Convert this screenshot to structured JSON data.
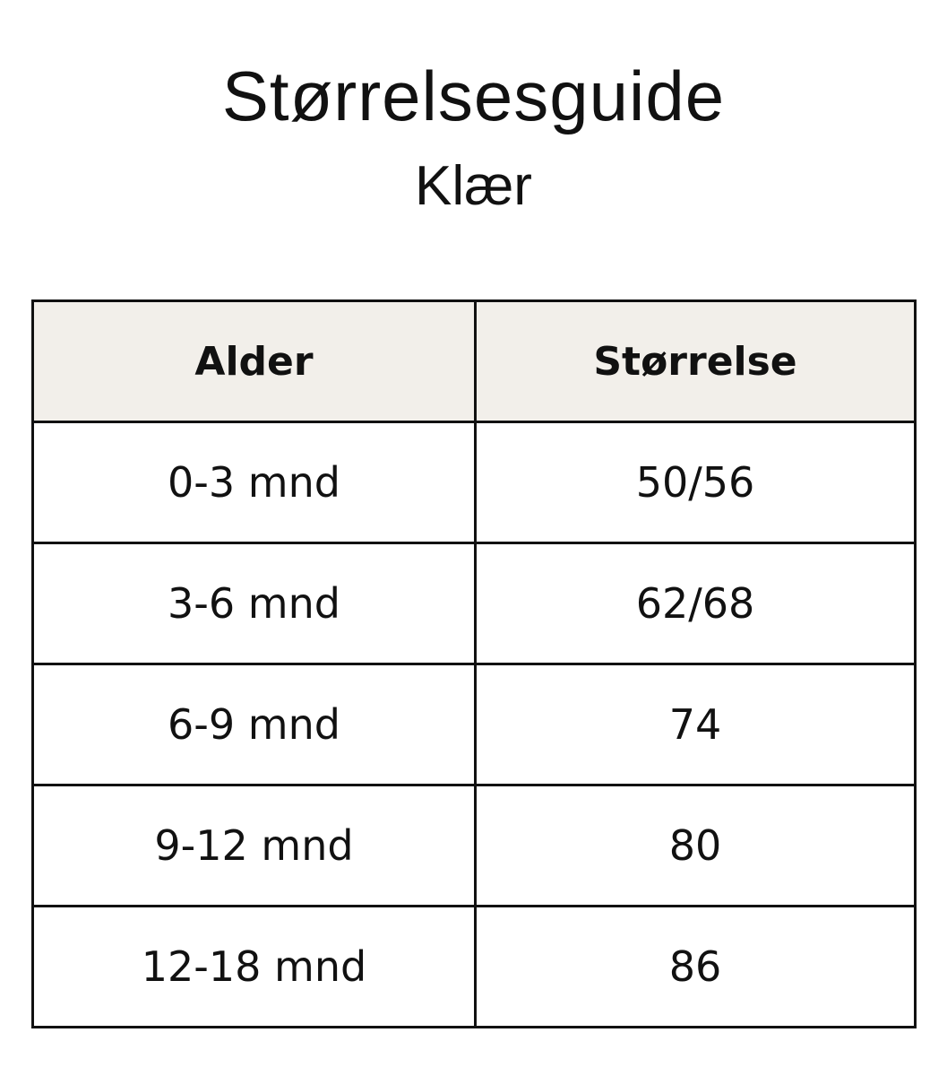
{
  "title": "Størrelsesguide",
  "subtitle": "Klær",
  "table": {
    "headers": [
      "Alder",
      "Størrelse"
    ],
    "rows": [
      [
        "0-3 mnd",
        "50/56"
      ],
      [
        "3-6 mnd",
        "62/68"
      ],
      [
        "6-9 mnd",
        "74"
      ],
      [
        "9-12 mnd",
        "80"
      ],
      [
        "12-18 mnd",
        "86"
      ]
    ]
  },
  "colors": {
    "header_bg": "#f2efea",
    "border": "#111111"
  }
}
